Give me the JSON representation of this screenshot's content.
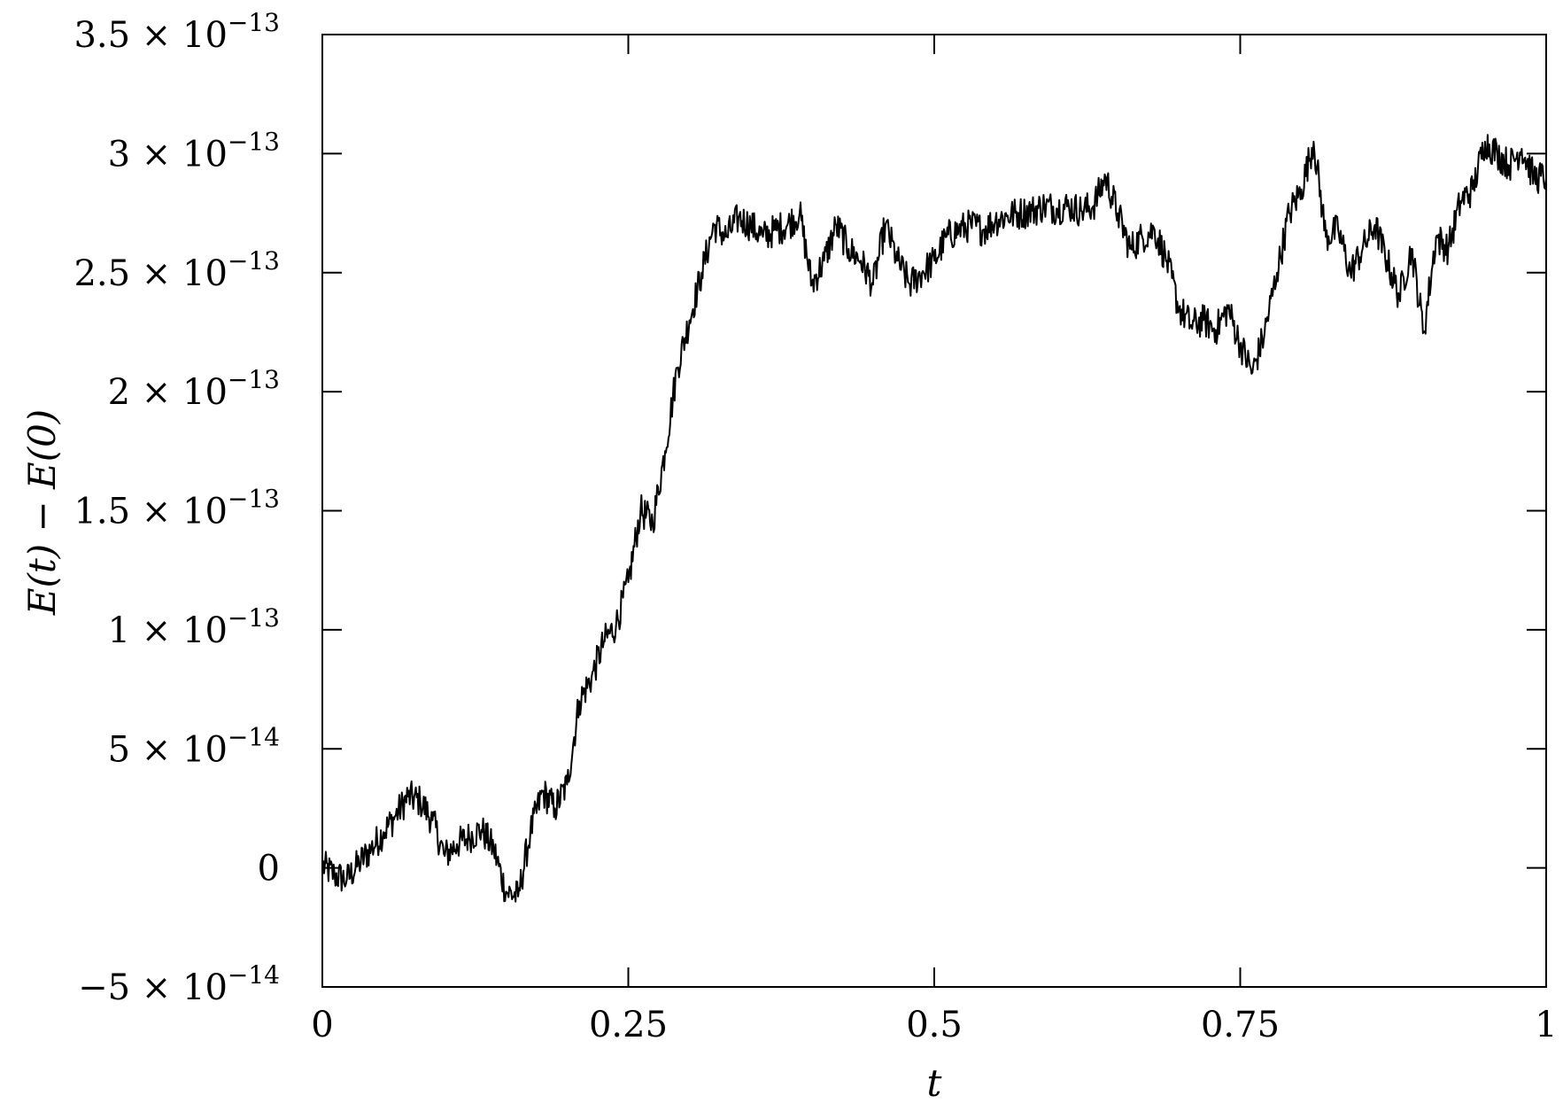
{
  "chart_data": {
    "type": "line",
    "title": "",
    "xlabel": "t",
    "ylabel": "E(t) − E(0)",
    "xlim": [
      0,
      1
    ],
    "ylim": [
      -5e-14,
      3.5e-13
    ],
    "grid": false,
    "legend": "none",
    "x_ticks": [
      {
        "value": 0,
        "label": "0"
      },
      {
        "value": 0.25,
        "label": "0.25"
      },
      {
        "value": 0.5,
        "label": "0.5"
      },
      {
        "value": 0.75,
        "label": "0.75"
      },
      {
        "value": 1,
        "label": "1"
      }
    ],
    "y_ticks": [
      {
        "value": -5e-14,
        "mantissa": "−5",
        "exponent": "−14"
      },
      {
        "value": 0,
        "mantissa": "0",
        "exponent": ""
      },
      {
        "value": 5e-14,
        "mantissa": "5",
        "exponent": "−14"
      },
      {
        "value": 1e-13,
        "mantissa": "1",
        "exponent": "−13"
      },
      {
        "value": 1.5e-13,
        "mantissa": "1.5",
        "exponent": "−13"
      },
      {
        "value": 2e-13,
        "mantissa": "2",
        "exponent": "−13"
      },
      {
        "value": 2.5e-13,
        "mantissa": "2.5",
        "exponent": "−13"
      },
      {
        "value": 3e-13,
        "mantissa": "3",
        "exponent": "−13"
      },
      {
        "value": 3.5e-13,
        "mantissa": "3.5",
        "exponent": "−13"
      }
    ],
    "series": [
      {
        "color": "#000000",
        "x": [
          0,
          0.01,
          0.02,
          0.03,
          0.04,
          0.05,
          0.06,
          0.07,
          0.08,
          0.09,
          0.1,
          0.11,
          0.12,
          0.13,
          0.14,
          0.15,
          0.16,
          0.17,
          0.18,
          0.19,
          0.2,
          0.21,
          0.22,
          0.23,
          0.24,
          0.25,
          0.26,
          0.27,
          0.28,
          0.29,
          0.3,
          0.31,
          0.32,
          0.33,
          0.34,
          0.35,
          0.36,
          0.37,
          0.38,
          0.39,
          0.4,
          0.41,
          0.42,
          0.43,
          0.44,
          0.45,
          0.46,
          0.47,
          0.48,
          0.49,
          0.5,
          0.51,
          0.52,
          0.53,
          0.54,
          0.55,
          0.56,
          0.57,
          0.58,
          0.59,
          0.6,
          0.61,
          0.62,
          0.63,
          0.64,
          0.65,
          0.66,
          0.67,
          0.68,
          0.69,
          0.7,
          0.71,
          0.72,
          0.73,
          0.74,
          0.75,
          0.76,
          0.77,
          0.78,
          0.79,
          0.8,
          0.81,
          0.82,
          0.83,
          0.84,
          0.85,
          0.86,
          0.87,
          0.88,
          0.89,
          0.9,
          0.91,
          0.92,
          0.93,
          0.94,
          0.95,
          0.96,
          0.97,
          0.98,
          0.99,
          1.0
        ],
        "y": [
          1e-15,
          -3e-15,
          -5e-15,
          2e-15,
          8e-15,
          1.5e-14,
          2.2e-14,
          3e-14,
          2.8e-14,
          2e-14,
          5e-15,
          1e-14,
          1.3e-14,
          1.6e-14,
          8e-15,
          -1e-14,
          -1.2e-14,
          1.5e-14,
          3.2e-14,
          2.5e-14,
          3.5e-14,
          7e-14,
          8e-14,
          9.5e-14,
          1.02e-13,
          1.2e-13,
          1.5e-13,
          1.45e-13,
          1.75e-13,
          2.1e-13,
          2.3e-13,
          2.5e-13,
          2.7e-13,
          2.65e-13,
          2.73e-13,
          2.7e-13,
          2.65e-13,
          2.68e-13,
          2.7e-13,
          2.75e-13,
          2.45e-13,
          2.55e-13,
          2.7e-13,
          2.6e-13,
          2.55e-13,
          2.45e-13,
          2.7e-13,
          2.55e-13,
          2.45e-13,
          2.5e-13,
          2.55e-13,
          2.65e-13,
          2.68e-13,
          2.7e-13,
          2.68e-13,
          2.72e-13,
          2.74e-13,
          2.75e-13,
          2.76e-13,
          2.78e-13,
          2.77e-13,
          2.78e-13,
          2.76e-13,
          2.78e-13,
          2.9e-13,
          2.75e-13,
          2.6e-13,
          2.65e-13,
          2.68e-13,
          2.55e-13,
          2.35e-13,
          2.28e-13,
          2.3e-13,
          2.26e-13,
          2.35e-13,
          2.2e-13,
          2.08e-13,
          2.25e-13,
          2.5e-13,
          2.75e-13,
          2.85e-13,
          3.05e-13,
          2.65e-13,
          2.68e-13,
          2.5e-13,
          2.6e-13,
          2.7e-13,
          2.55e-13,
          2.4e-13,
          2.6e-13,
          2.25e-13,
          2.65e-13,
          2.6e-13,
          2.8e-13,
          2.85e-13,
          3.05e-13,
          3e-13,
          2.95e-13,
          3.02e-13,
          2.9e-13,
          2.9e-13
        ]
      }
    ]
  }
}
